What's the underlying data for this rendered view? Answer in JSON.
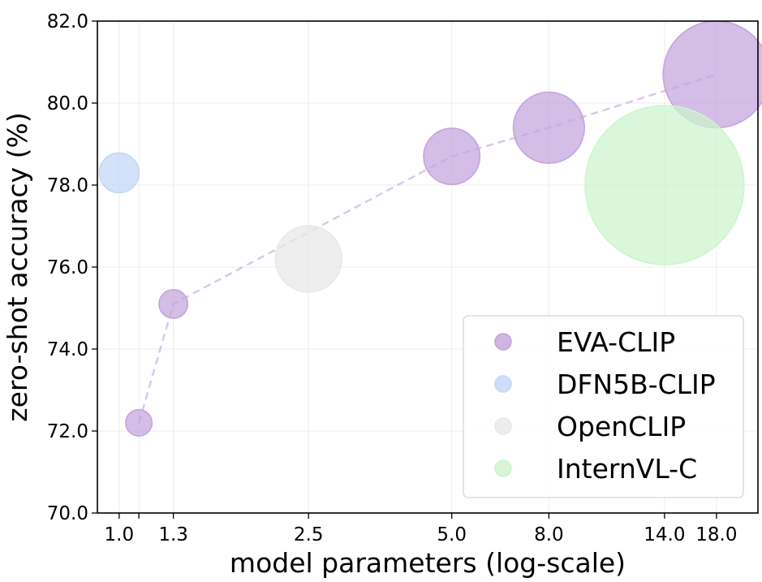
{
  "chart_data": {
    "type": "scatter",
    "xlabel": "model parameters (log-scale)",
    "ylabel": "zero-shot accuracy (%)",
    "x_scale": "log",
    "xlim": [
      0.9,
      22.0
    ],
    "ylim": [
      70.0,
      82.0
    ],
    "xticks": [
      {
        "value": 1.0,
        "label": "1.0"
      },
      {
        "value": 1.1,
        "label": ""
      },
      {
        "value": 1.3,
        "label": "1.3"
      },
      {
        "value": 2.5,
        "label": "2.5"
      },
      {
        "value": 5.0,
        "label": "5.0"
      },
      {
        "value": 8.0,
        "label": "8.0"
      },
      {
        "value": 14.0,
        "label": "14.0"
      },
      {
        "value": 18.0,
        "label": "18.0"
      }
    ],
    "yticks": [
      {
        "value": 70,
        "label": "70.0"
      },
      {
        "value": 72,
        "label": "72.0"
      },
      {
        "value": 74,
        "label": "74.0"
      },
      {
        "value": 76,
        "label": "76.0"
      },
      {
        "value": 78,
        "label": "78.0"
      },
      {
        "value": 80,
        "label": "80.0"
      },
      {
        "value": 82,
        "label": "82.0"
      }
    ],
    "grid": true,
    "legend_position": "lower-right",
    "bubble_size_encodes": "model parameters",
    "series": [
      {
        "name": "EVA-CLIP",
        "color": "#c3a3dd",
        "line_style": "dashed",
        "points": [
          {
            "x": 1.1,
            "y": 72.2,
            "size": 1.1
          },
          {
            "x": 1.3,
            "y": 75.1,
            "size": 1.3
          },
          {
            "x": 5.0,
            "y": 78.7,
            "size": 5.0
          },
          {
            "x": 8.0,
            "y": 79.4,
            "size": 8.0
          },
          {
            "x": 18.0,
            "y": 80.7,
            "size": 18.0
          }
        ]
      },
      {
        "name": "DFN5B-CLIP",
        "color": "#c2d6f7",
        "points": [
          {
            "x": 1.0,
            "y": 78.3,
            "size": 2.5
          }
        ]
      },
      {
        "name": "OpenCLIP",
        "color": "#e8e8e8",
        "points": [
          {
            "x": 2.5,
            "y": 76.2,
            "size": 7.0
          }
        ]
      },
      {
        "name": "InternVL-C",
        "color": "#cdf4cd",
        "points": [
          {
            "x": 14.0,
            "y": 78.0,
            "size": 40.0
          }
        ]
      }
    ]
  }
}
